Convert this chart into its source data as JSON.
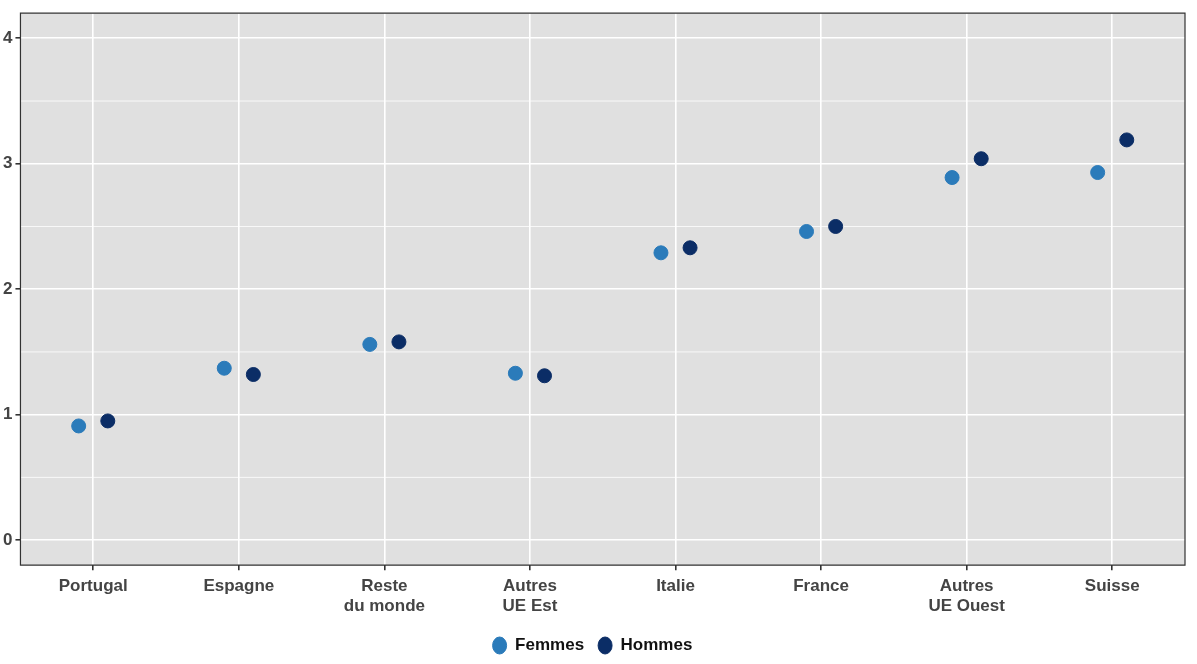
{
  "chart_data": {
    "type": "scatter",
    "categories": [
      "Portugal",
      "Espagne",
      "Reste du monde",
      "Autres UE Est",
      "Italie",
      "France",
      "Autres UE Ouest",
      "Suisse"
    ],
    "series": [
      {
        "name": "Femmes",
        "color": "#2b7bba",
        "values": [
          0.91,
          1.37,
          1.56,
          1.33,
          2.29,
          2.46,
          2.89,
          2.93
        ]
      },
      {
        "name": "Hommes",
        "color": "#0b2d66",
        "values": [
          0.95,
          1.32,
          1.58,
          1.31,
          2.33,
          2.5,
          3.04,
          3.19
        ]
      }
    ],
    "ylim": [
      -0.2,
      4.2
    ],
    "yticks": [
      0,
      1,
      2,
      3,
      4
    ],
    "grid": true,
    "legend": "bottom",
    "marker": "circle"
  }
}
